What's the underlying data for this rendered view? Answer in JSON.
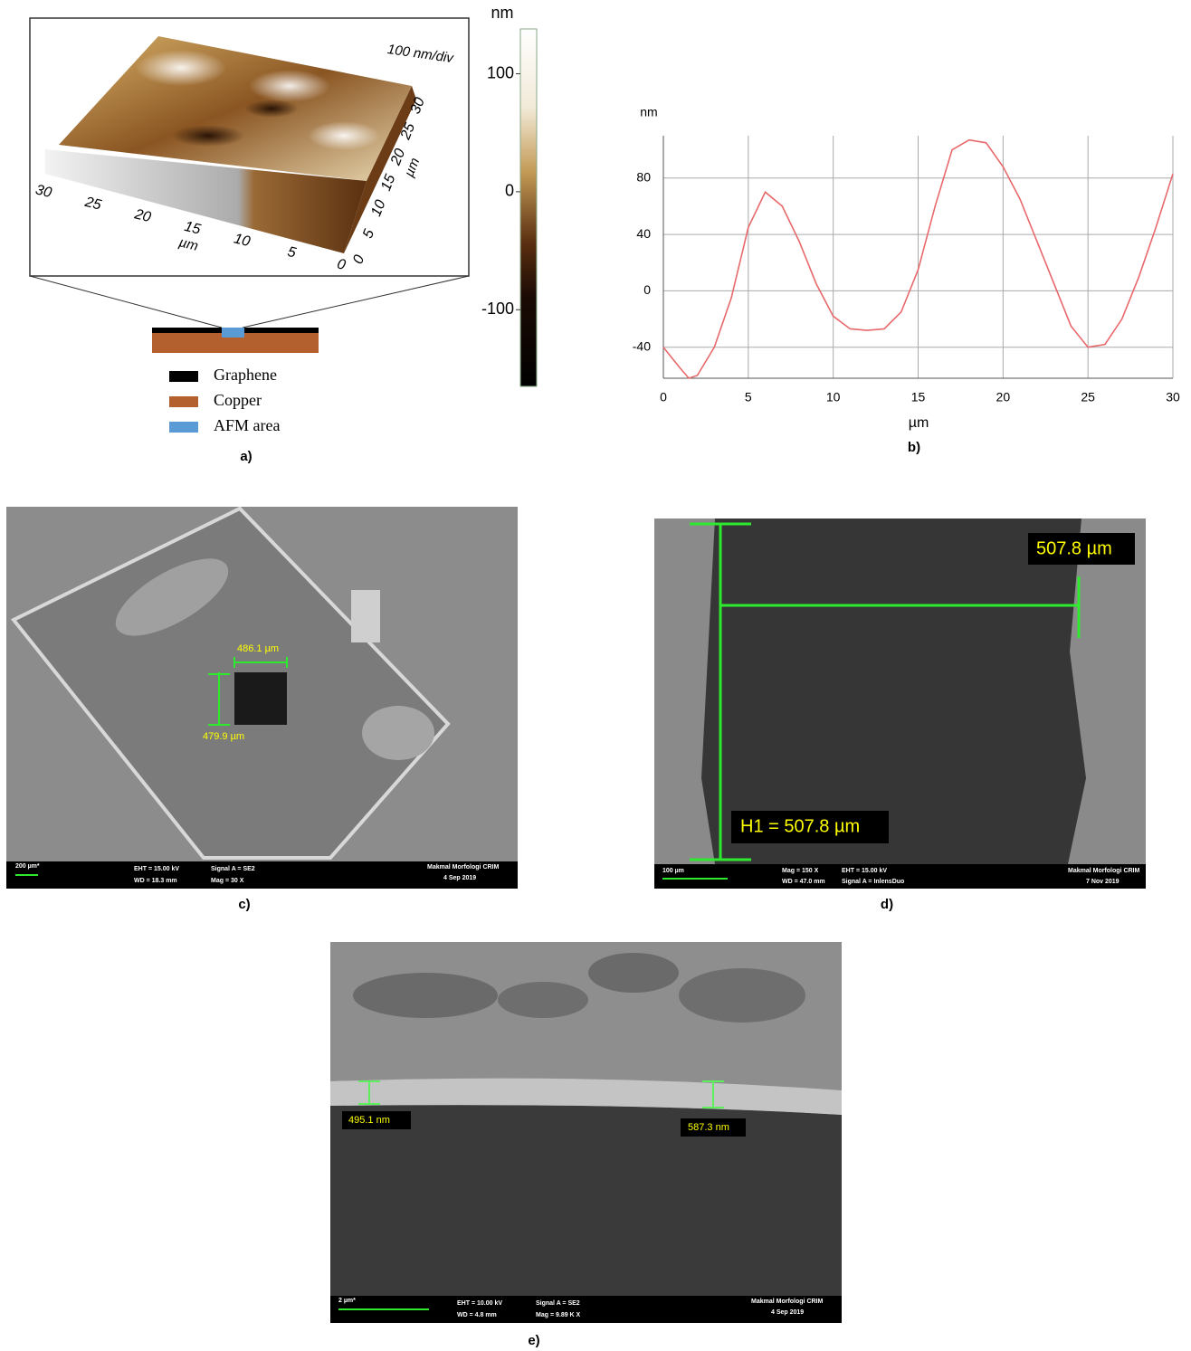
{
  "panel_a": {
    "caption": "a)",
    "scale_label": "100 nm/div",
    "x_axis_unit": "µm",
    "y_axis_unit": "µm",
    "x_axis_ticks": [
      30,
      25,
      20,
      15,
      10,
      5,
      0
    ],
    "y_axis_ticks": [
      0,
      5,
      10,
      15,
      20,
      25,
      30
    ],
    "colorbar": {
      "label": "nm",
      "lim": [
        -165,
        138
      ],
      "ticks": [
        100,
        0,
        -100
      ]
    },
    "legend": [
      "Graphene",
      "Copper",
      "AFM area"
    ]
  },
  "chart_data": {
    "type": "line",
    "caption": "b)",
    "x_label": "µm",
    "y_label": "nm",
    "x": [
      0,
      1,
      1.5,
      2,
      3,
      4,
      5,
      6,
      7,
      8,
      9,
      10,
      11,
      12,
      13,
      14,
      15,
      16,
      17,
      18,
      19,
      20,
      21,
      22,
      23,
      24,
      25,
      26,
      27,
      28,
      29,
      30
    ],
    "values": [
      -40,
      -55,
      -62,
      -60,
      -40,
      -5,
      45,
      70,
      60,
      35,
      5,
      -18,
      -27,
      -28,
      -27,
      -15,
      15,
      60,
      100,
      107,
      105,
      88,
      65,
      35,
      5,
      -25,
      -40,
      -38,
      -20,
      10,
      45,
      83
    ],
    "color": "#e8696b",
    "xlim": [
      0,
      30
    ],
    "xticks": [
      0,
      5,
      10,
      15,
      20,
      25,
      30
    ],
    "ylim": [
      -62,
      110
    ],
    "yticks": [
      -40,
      0,
      40,
      80
    ],
    "grid": true
  },
  "panel_c": {
    "caption": "c)",
    "width_label": "486.1 µm",
    "height_label": "479.9 µm",
    "info": [
      "200 µm*",
      "EHT = 15.00 kV",
      "WD = 18.3 mm",
      "Signal A = SE2",
      "Mag =   30 X",
      "Makmal Morfologi CRIM",
      "4 Sep 2019"
    ]
  },
  "panel_d": {
    "caption": "d)",
    "width_label": "507.8 µm",
    "height_label": "H1 = 507.8 µm",
    "info": [
      "100 µm",
      "Mag =   150 X",
      "WD = 47.0 mm",
      "EHT = 15.00 kV",
      "Signal A = InlensDuo",
      "Makmal Morfologi CRIM",
      "7 Nov 2019"
    ]
  },
  "panel_e": {
    "caption": "e)",
    "left_label": "495.1 nm",
    "right_label": "587.3 nm",
    "info": [
      "2 µm*",
      "EHT = 10.00 kV",
      "WD = 4.8 mm",
      "Signal A = SE2",
      "Mag =   9.89 K X",
      "Makmal Morfologi CRIM",
      "4 Sep 2019"
    ]
  }
}
